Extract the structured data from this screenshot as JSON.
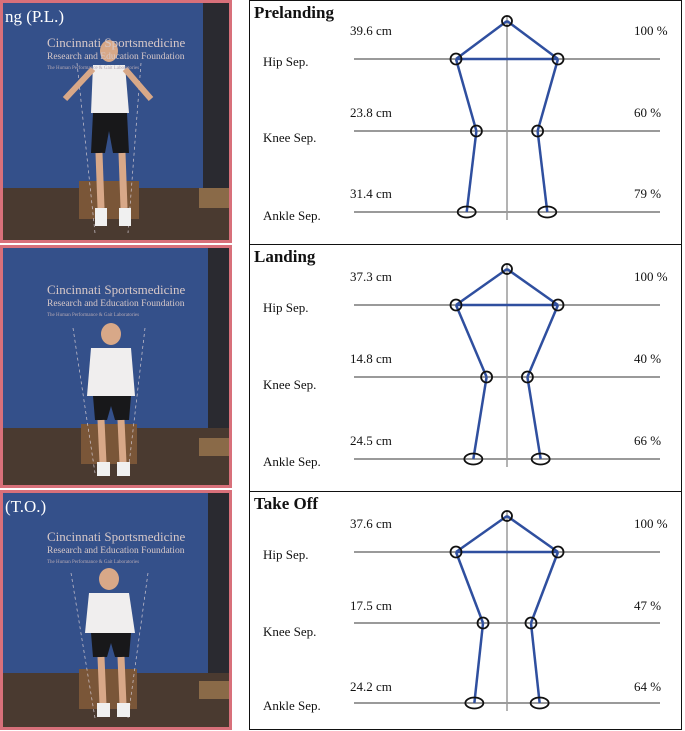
{
  "photos": [
    {
      "overlay": "ng (P.L.)",
      "sign_line1": "Cincinnati Sportsmedicine",
      "sign_line2": "Research and Education Foundation",
      "sign_line3": "The Human Performance & Gait Laboratories"
    },
    {
      "overlay": "",
      "sign_line1": "Cincinnati Sportsmedicine",
      "sign_line2": "Research and Education Foundation",
      "sign_line3": "The Human Performance & Gait Laboratories"
    },
    {
      "overlay": "(T.O.)",
      "sign_line1": "Cincinnati Sportsmedicine",
      "sign_line2": "Research and Education Foundation",
      "sign_line3": "The Human Performance & Gait Laboratories"
    }
  ],
  "panels": [
    {
      "title": "Prelanding",
      "hip_label": "Hip Sep.",
      "knee_label": "Knee Sep.",
      "ankle_label": "Ankle Sep.",
      "hip_cm": "39.6 cm",
      "knee_cm": "23.8 cm",
      "ankle_cm": "31.4 cm",
      "hip_pct": "100 %",
      "knee_pct": "60 %",
      "ankle_pct": "79 %",
      "hip_fraction": 1.0,
      "knee_fraction": 0.6,
      "ankle_fraction": 0.79
    },
    {
      "title": "Landing",
      "hip_label": "Hip Sep.",
      "knee_label": "Knee Sep.",
      "ankle_label": "Ankle Sep.",
      "hip_cm": "37.3 cm",
      "knee_cm": "14.8 cm",
      "ankle_cm": "24.5 cm",
      "hip_pct": "100 %",
      "knee_pct": "40 %",
      "ankle_pct": "66 %",
      "hip_fraction": 1.0,
      "knee_fraction": 0.4,
      "ankle_fraction": 0.66
    },
    {
      "title": "Take Off",
      "hip_label": "Hip Sep.",
      "knee_label": "Knee Sep.",
      "ankle_label": "Ankle Sep.",
      "hip_cm": "37.6 cm",
      "knee_cm": "17.5 cm",
      "ankle_cm": "24.2 cm",
      "hip_pct": "100 %",
      "knee_pct": "47 %",
      "ankle_pct": "64 %",
      "hip_fraction": 1.0,
      "knee_fraction": 0.47,
      "ankle_fraction": 0.64
    }
  ],
  "colors": {
    "stick": "#2f4f9f",
    "joint": "#111111",
    "guide": "#9a9a9a",
    "backdrop": "#34508a",
    "frame": "#d8707a"
  }
}
